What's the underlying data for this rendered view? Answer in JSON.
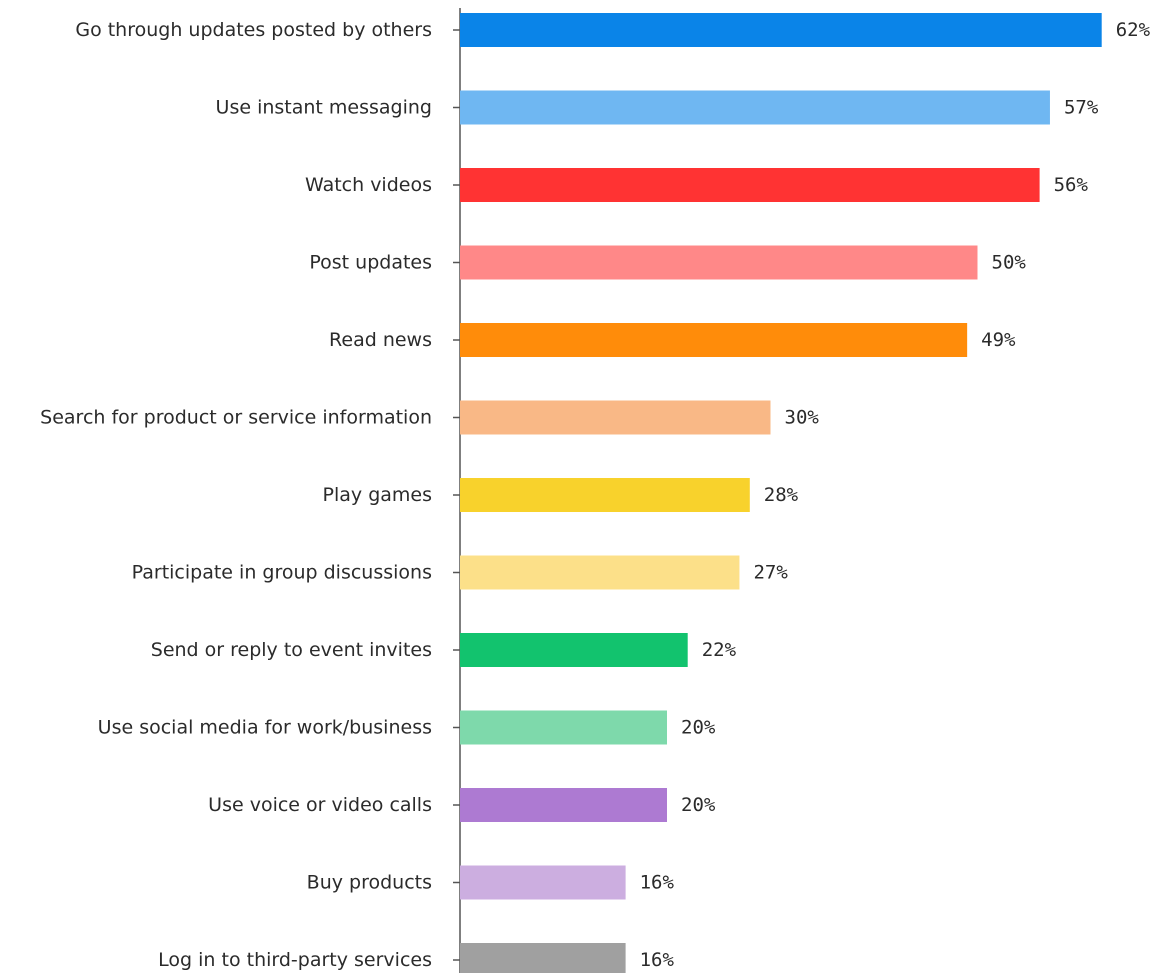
{
  "chart_data": {
    "type": "bar",
    "orientation": "horizontal",
    "title": "",
    "xlabel": "",
    "ylabel": "",
    "categories": [
      "Go through updates posted by others",
      "Use instant messaging",
      "Watch videos",
      "Post updates",
      "Read news",
      "Search for product or service information",
      "Play games",
      "Participate in group discussions",
      "Send or reply to event invites",
      "Use social media for work/business",
      "Use voice or video calls",
      "Buy products",
      "Log in to third-party services"
    ],
    "values": [
      62,
      57,
      56,
      50,
      49,
      30,
      28,
      27,
      22,
      20,
      20,
      16,
      16
    ],
    "value_labels": [
      "62%",
      "57%",
      "56%",
      "50%",
      "49%",
      "30%",
      "28%",
      "27%",
      "22%",
      "20%",
      "20%",
      "16%",
      "16%"
    ],
    "colors": [
      "#0a84e8",
      "#6fb7f2",
      "#ff3333",
      "#ff8888",
      "#ff8c0a",
      "#f9b886",
      "#f8d22c",
      "#fce089",
      "#12c36e",
      "#7ed9ab",
      "#ad7ad2",
      "#ccaee0",
      "#a0a0a0"
    ],
    "axis_color": "#555555",
    "grid": false,
    "legend": "none"
  }
}
